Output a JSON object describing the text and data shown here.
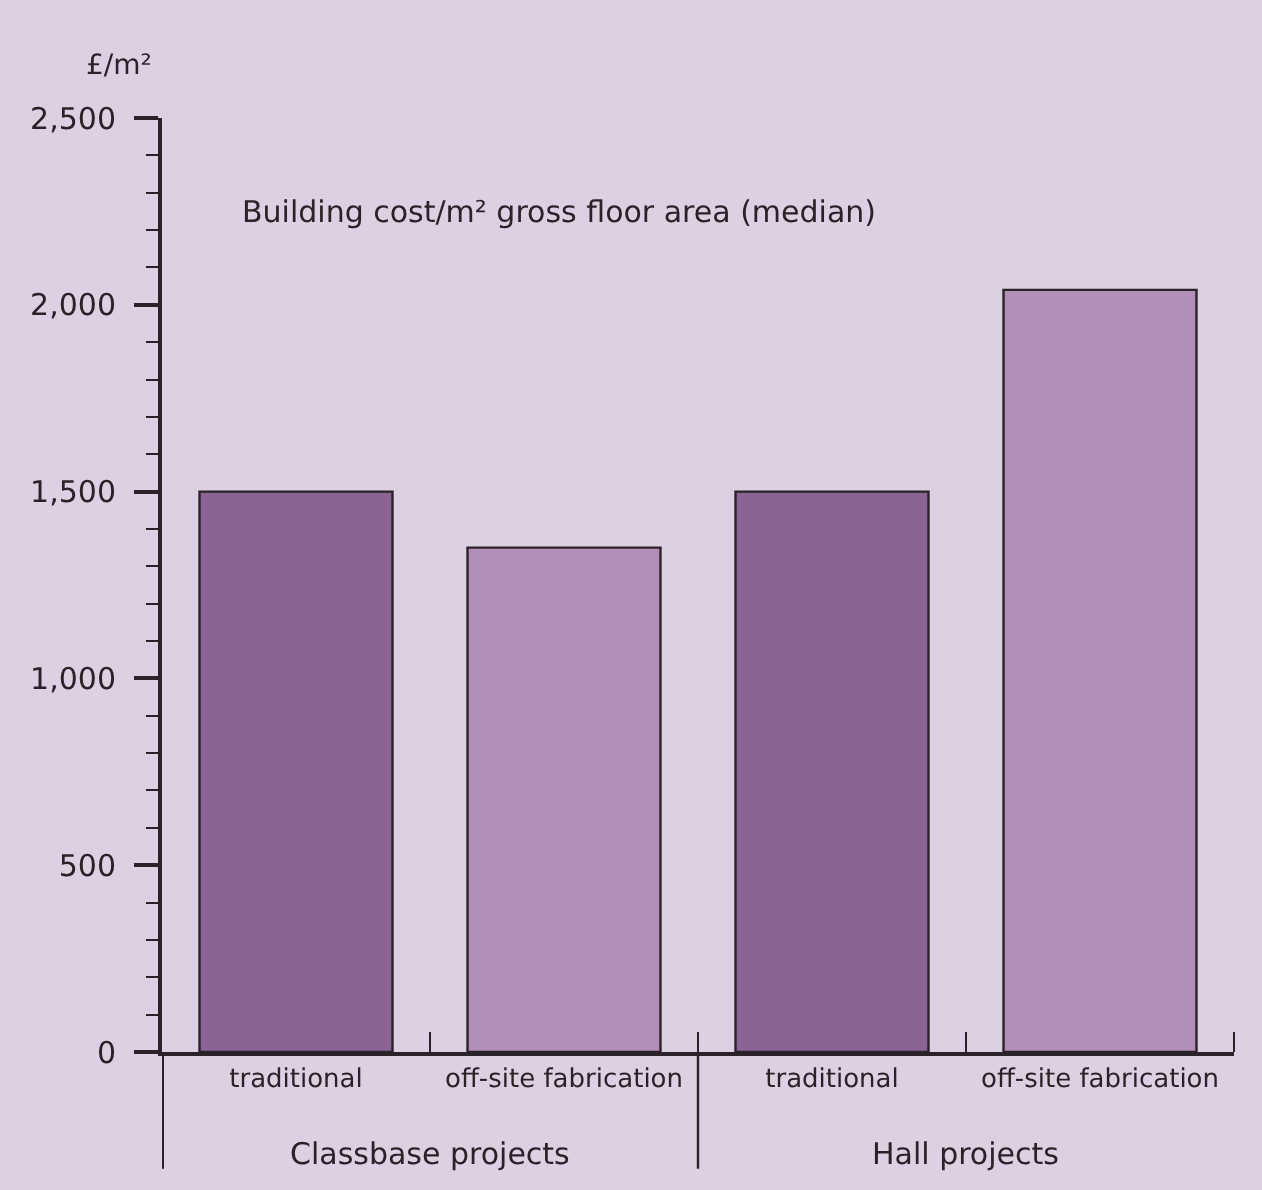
{
  "chart_data": {
    "type": "bar",
    "title": "Building cost/m² gross floor area (median)",
    "ylabel": "£/m²",
    "categories": [
      "traditional",
      "off-site fabrication",
      "traditional",
      "off-site fabrication"
    ],
    "values": [
      1500,
      1350,
      1500,
      2040
    ],
    "colors": [
      "#8b6496",
      "#b090b8",
      "#8b6496",
      "#b090b8"
    ],
    "annotations": [
      "Classbase projects",
      "Hall projects"
    ],
    "ylim": [
      0,
      2500
    ],
    "yticks": [
      0,
      {
        "value": 100,
        "label": null
      },
      {
        "value": 200,
        "label": null
      },
      {
        "value": 300,
        "label": null
      },
      {
        "value": 400,
        "label": null
      },
      {
        "value": 500,
        "label": "500"
      },
      {
        "value": 600,
        "label": null
      },
      {
        "value": 700,
        "label": null
      },
      {
        "value": 800,
        "label": null
      },
      {
        "value": 900,
        "label": null
      },
      {
        "value": 1000,
        "label": "1,000"
      },
      {
        "value": 1100,
        "label": null
      },
      {
        "value": 1200,
        "label": null
      },
      {
        "value": 1300,
        "label": null
      },
      {
        "value": 1400,
        "label": null
      },
      {
        "value": 1500,
        "label": "1,500"
      },
      {
        "value": 1600,
        "label": null
      },
      {
        "value": 1700,
        "label": null
      },
      {
        "value": 1800,
        "label": null
      },
      {
        "value": 1900,
        "label": null
      },
      {
        "value": 2000,
        "label": "2,000"
      },
      {
        "value": 2100,
        "label": null
      },
      {
        "value": 2200,
        "label": null
      },
      {
        "value": 2300,
        "label": null
      },
      {
        "value": 2400,
        "label": null
      },
      {
        "value": 2500,
        "label": "2,500"
      }
    ],
    "grid": false
  }
}
